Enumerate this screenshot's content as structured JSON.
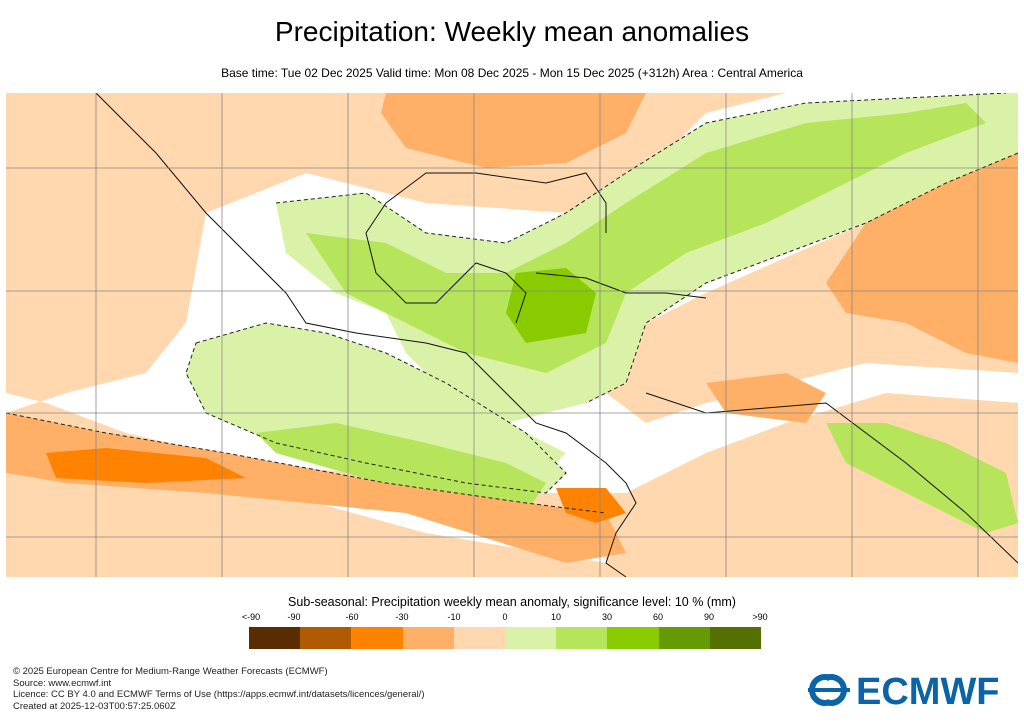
{
  "header": {
    "title": "Precipitation: Weekly mean anomalies",
    "subtitle": "Base time: Tue 02 Dec 2025 Valid time: Mon 08 Dec 2025 - Mon 15 Dec 2025 (+312h) Area : Central America"
  },
  "legend": {
    "title": "Sub-seasonal: Precipitation weekly mean anomaly, significance level: 10 % (mm)",
    "labels": [
      "<-90",
      "-90",
      "-60",
      "-30",
      "-10",
      "0",
      "10",
      "30",
      "60",
      "90",
      ">90"
    ],
    "colors": [
      "#5a2d00",
      "#b05a00",
      "#ff8200",
      "#ffb066",
      "#ffd8b0",
      "#daf2a8",
      "#b6e45a",
      "#88cc00",
      "#659a00",
      "#537000"
    ]
  },
  "map": {
    "area": "Central America",
    "colors": {
      "background_anomaly": "#ffd8b0",
      "neutral": "#ffffff",
      "ocean_grid": "#888888",
      "coast": "#000000"
    }
  },
  "footer": {
    "lines": [
      "© 2025 European Centre for Medium-Range Weather Forecasts (ECMWF)",
      "Source: www.ecmwf.int",
      "Licence: CC BY 4.0 and ECMWF Terms of Use (https://apps.ecmwf.int/datasets/licences/general/)",
      "Created at 2025-12-03T00:57:25.060Z"
    ]
  },
  "logo": {
    "text": "ECMWF",
    "color": "#0b64a8"
  }
}
